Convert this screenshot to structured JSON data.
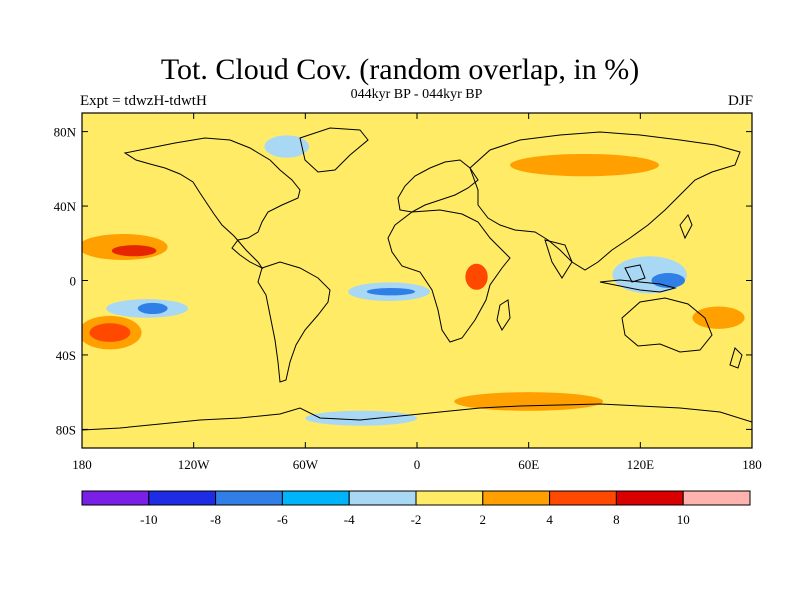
{
  "title": "Tot. Cloud Cov. (random overlap, in %)",
  "subtitle": "044kyr BP - 044kyr BP",
  "left_label": "Expt = tdwzH-tdwtH",
  "right_label": "DJF",
  "map": {
    "projection": "cylindrical-equidistant",
    "lon_range": [
      -180,
      180
    ],
    "lat_range": [
      -90,
      90
    ],
    "x_ticks": [
      {
        "value": -180,
        "label": "180"
      },
      {
        "value": -120,
        "label": "120W"
      },
      {
        "value": -60,
        "label": "60W"
      },
      {
        "value": 0,
        "label": "0"
      },
      {
        "value": 60,
        "label": "60E"
      },
      {
        "value": 120,
        "label": "120E"
      },
      {
        "value": 180,
        "label": "180"
      }
    ],
    "y_ticks": [
      {
        "value": 80,
        "label": "80N"
      },
      {
        "value": 40,
        "label": "40N"
      },
      {
        "value": 0,
        "label": "0"
      },
      {
        "value": -40,
        "label": "40S"
      },
      {
        "value": -80,
        "label": "80S"
      }
    ],
    "background_color": "#FFEB66",
    "anomaly_regions": [
      {
        "name": "N Pacific warm anomaly",
        "lon": -158,
        "lat": 18,
        "rlon": 24,
        "rlat": 7,
        "color": "#FF9F00"
      },
      {
        "name": "N Pacific core",
        "lon": -152,
        "lat": 16,
        "rlon": 12,
        "rlat": 3,
        "color": "#E62600"
      },
      {
        "name": "SE Pacific anomaly",
        "lon": -165,
        "lat": -28,
        "rlon": 17,
        "rlat": 9,
        "color": "#FF9F00"
      },
      {
        "name": "SE Pacific core",
        "lon": -165,
        "lat": -28,
        "rlon": 11,
        "rlat": 5,
        "color": "#FF4800"
      },
      {
        "name": "Tropical Pacific negative",
        "lon": -145,
        "lat": -15,
        "rlon": 22,
        "rlat": 5,
        "color": "#A9D8F4"
      },
      {
        "name": "Tropical Pacific core",
        "lon": -142,
        "lat": -15,
        "rlon": 8,
        "rlat": 3,
        "color": "#2F7FE6"
      },
      {
        "name": "Equatorial Atlantic negative",
        "lon": -15,
        "lat": -6,
        "rlon": 22,
        "rlat": 5,
        "color": "#A9D8F4"
      },
      {
        "name": "Equatorial Atlantic core",
        "lon": -14,
        "lat": -6,
        "rlon": 13,
        "rlat": 2,
        "color": "#2F7FE6"
      },
      {
        "name": "Africa positive",
        "lon": 32,
        "lat": 2,
        "rlon": 6,
        "rlat": 7,
        "color": "#FF4800"
      },
      {
        "name": "Maritime continent negative",
        "lon": 125,
        "lat": 3,
        "rlon": 20,
        "rlat": 10,
        "color": "#A9D8F4"
      },
      {
        "name": "Maritime continent core",
        "lon": 135,
        "lat": 0,
        "rlon": 9,
        "rlat": 4,
        "color": "#2F7FE6"
      },
      {
        "name": "W Pacific positive",
        "lon": 162,
        "lat": -20,
        "rlon": 14,
        "rlat": 6,
        "color": "#FF9F00"
      },
      {
        "name": "Antarctic coast negative",
        "lon": -30,
        "lat": -74,
        "rlon": 30,
        "rlat": 4,
        "color": "#A9D8F4"
      },
      {
        "name": "Southern Ocean positive",
        "lon": 60,
        "lat": -65,
        "rlon": 40,
        "rlat": 5,
        "color": "#FF9F00"
      },
      {
        "name": "Arctic negative",
        "lon": -70,
        "lat": 72,
        "rlon": 12,
        "rlat": 6,
        "color": "#A9D8F4"
      },
      {
        "name": "Siberia positive",
        "lon": 90,
        "lat": 62,
        "rlon": 40,
        "rlat": 6,
        "color": "#FF9F00"
      }
    ]
  },
  "colorbar": {
    "bins": [
      {
        "color": "#7A1FE6"
      },
      {
        "color": "#1E2CE6"
      },
      {
        "color": "#2F7FE6"
      },
      {
        "color": "#00B4FA"
      },
      {
        "color": "#A9D8F4"
      },
      {
        "color": "#FFEB66"
      },
      {
        "color": "#FF9F00"
      },
      {
        "color": "#FF4800"
      },
      {
        "color": "#D90000"
      },
      {
        "color": "#FFB3AF"
      }
    ],
    "labels": [
      "-10",
      "-8",
      "-6",
      "-4",
      "-2",
      "2",
      "4",
      "8",
      "10"
    ]
  }
}
